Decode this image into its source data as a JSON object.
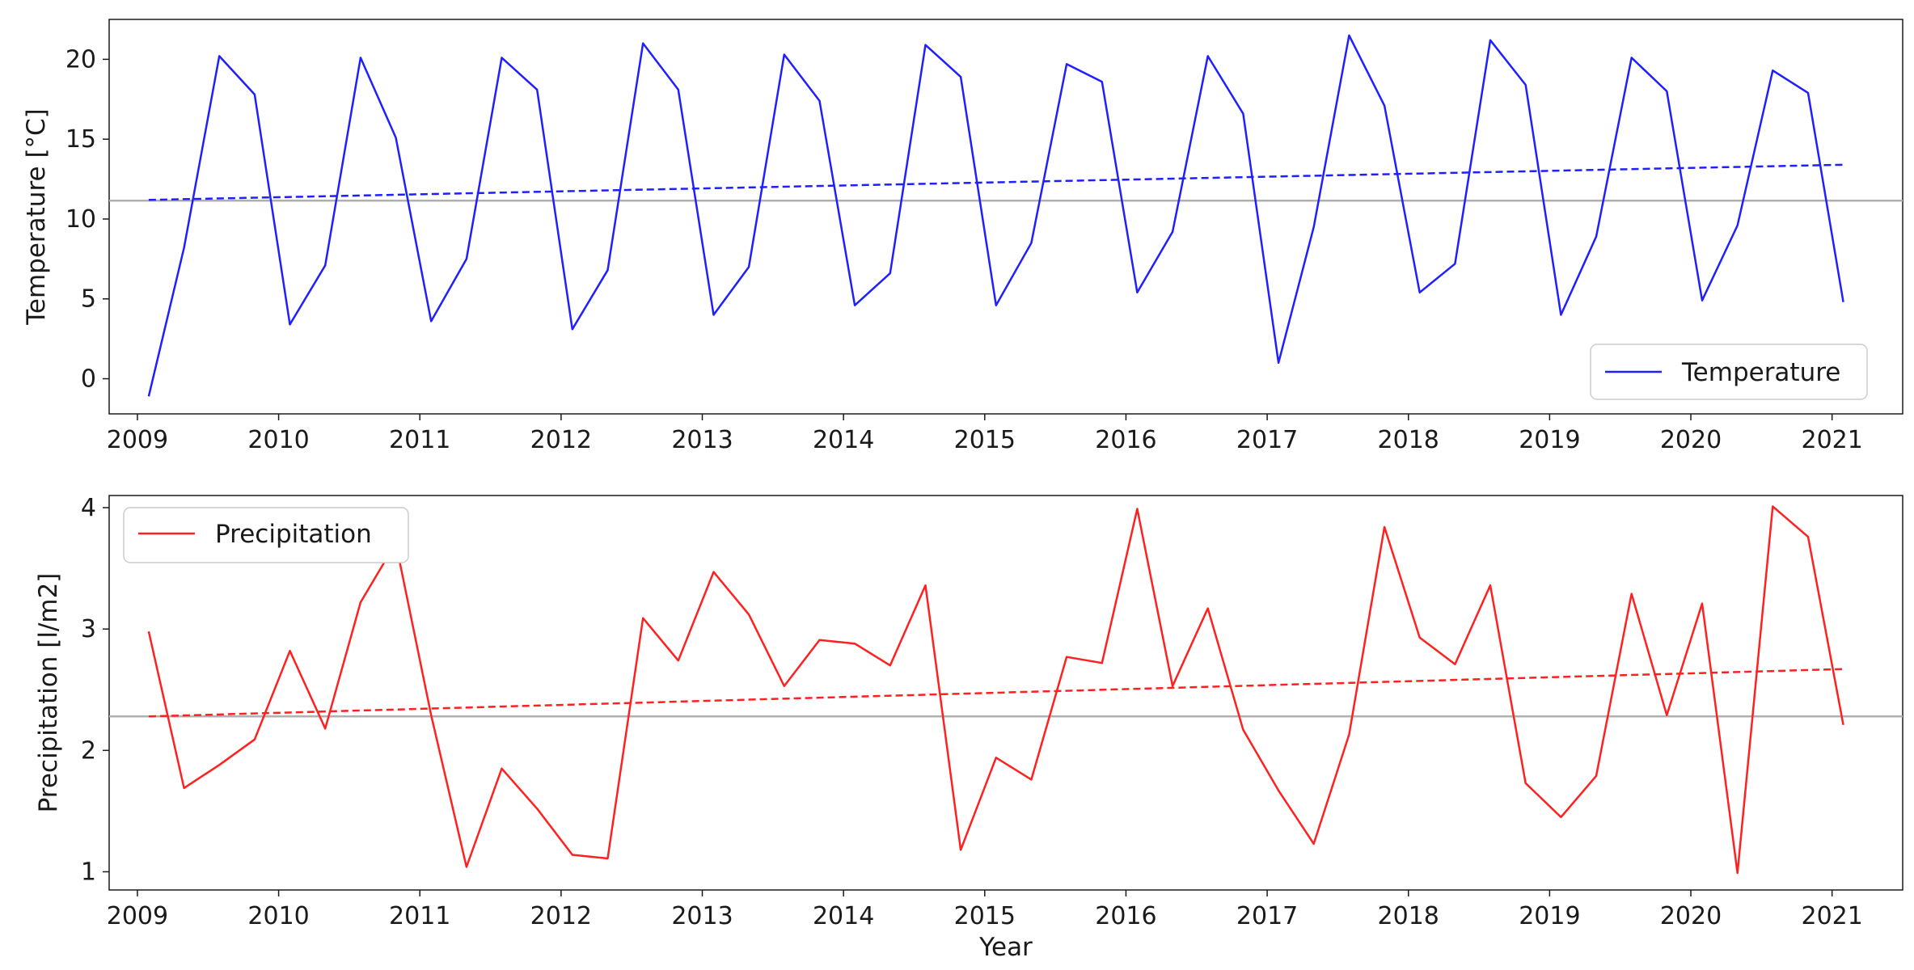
{
  "chart_data": [
    {
      "type": "line",
      "title": "",
      "xlabel": "",
      "ylabel": "Temperature [°C]",
      "xlim": [
        2008.8,
        2021.5
      ],
      "ylim": [
        -2.2,
        22.5
      ],
      "xticks": [
        2009,
        2010,
        2011,
        2012,
        2013,
        2014,
        2015,
        2016,
        2017,
        2018,
        2019,
        2020,
        2021
      ],
      "xtick_labels": [
        "2009",
        "2010",
        "2011",
        "2012",
        "2013",
        "2014",
        "2015",
        "2016",
        "2017",
        "2018",
        "2019",
        "2020",
        "2021"
      ],
      "yticks": [
        0,
        5,
        10,
        15,
        20
      ],
      "ytick_labels": [
        "0",
        "5",
        "10",
        "15",
        "20"
      ],
      "grid": false,
      "legend_position": "lower-right",
      "series": [
        {
          "name": "Temperature",
          "color": "#1f1fff",
          "x": [
            2009.08,
            2009.33,
            2009.58,
            2009.83,
            2010.08,
            2010.33,
            2010.58,
            2010.83,
            2011.08,
            2011.33,
            2011.58,
            2011.83,
            2012.08,
            2012.33,
            2012.58,
            2012.83,
            2013.08,
            2013.33,
            2013.58,
            2013.83,
            2014.08,
            2014.33,
            2014.58,
            2014.83,
            2015.08,
            2015.33,
            2015.58,
            2015.83,
            2016.08,
            2016.33,
            2016.58,
            2016.83,
            2017.08,
            2017.33,
            2017.58,
            2017.83,
            2018.08,
            2018.33,
            2018.58,
            2018.83,
            2019.08,
            2019.33,
            2019.58,
            2019.83,
            2020.08,
            2020.33,
            2020.58,
            2020.83,
            2021.08
          ],
          "y": [
            -1.1,
            8.2,
            20.2,
            17.8,
            3.4,
            7.1,
            20.1,
            15.1,
            3.6,
            7.5,
            20.1,
            18.1,
            3.1,
            6.8,
            21.0,
            18.1,
            4.0,
            7.0,
            20.3,
            17.4,
            4.6,
            6.6,
            20.9,
            18.9,
            4.6,
            8.5,
            19.7,
            18.6,
            5.4,
            9.2,
            20.2,
            16.6,
            1.0,
            9.5,
            21.5,
            17.1,
            5.4,
            7.2,
            21.2,
            18.4,
            4.0,
            8.9,
            20.1,
            18.0,
            4.9,
            9.6,
            19.3,
            17.9,
            4.8
          ]
        },
        {
          "name": "",
          "color": "#1f1fff",
          "style": "dashed",
          "x": [
            2009.08,
            2021.08
          ],
          "y": [
            11.2,
            13.4
          ]
        },
        {
          "name": "",
          "color": "#b0b0b0",
          "style": "horizontal-mean-line",
          "x": [
            2008.8,
            2021.5
          ],
          "y": [
            11.15,
            11.15
          ]
        }
      ]
    },
    {
      "type": "line",
      "title": "",
      "xlabel": "Year",
      "ylabel": "Precipitation [l/m2]",
      "xlim": [
        2008.8,
        2021.5
      ],
      "ylim": [
        0.85,
        4.1
      ],
      "xticks": [
        2009,
        2010,
        2011,
        2012,
        2013,
        2014,
        2015,
        2016,
        2017,
        2018,
        2019,
        2020,
        2021
      ],
      "xtick_labels": [
        "2009",
        "2010",
        "2011",
        "2012",
        "2013",
        "2014",
        "2015",
        "2016",
        "2017",
        "2018",
        "2019",
        "2020",
        "2021"
      ],
      "yticks": [
        1,
        2,
        3,
        4
      ],
      "ytick_labels": [
        "1",
        "2",
        "3",
        "4"
      ],
      "grid": false,
      "legend_position": "upper-left",
      "series": [
        {
          "name": "Precipitation",
          "color": "#ff2020",
          "x": [
            2009.08,
            2009.33,
            2009.58,
            2009.83,
            2010.08,
            2010.33,
            2010.58,
            2010.83,
            2011.08,
            2011.33,
            2011.58,
            2011.83,
            2012.08,
            2012.33,
            2012.58,
            2012.83,
            2013.08,
            2013.33,
            2013.58,
            2013.83,
            2014.08,
            2014.33,
            2014.58,
            2014.83,
            2015.08,
            2015.33,
            2015.58,
            2015.83,
            2016.08,
            2016.33,
            2016.58,
            2016.83,
            2017.08,
            2017.33,
            2017.58,
            2017.83,
            2018.08,
            2018.33,
            2018.58,
            2018.83,
            2019.08,
            2019.33,
            2019.58,
            2019.83,
            2020.08,
            2020.33,
            2020.58,
            2020.83,
            2021.08
          ],
          "y": [
            2.98,
            1.69,
            1.88,
            2.09,
            2.82,
            2.18,
            3.22,
            3.71,
            2.29,
            1.04,
            1.85,
            1.52,
            1.14,
            1.11,
            3.09,
            2.74,
            3.47,
            3.12,
            2.53,
            2.91,
            2.88,
            2.7,
            3.36,
            1.18,
            1.94,
            1.76,
            2.77,
            2.72,
            3.99,
            2.53,
            3.17,
            2.17,
            1.67,
            1.23,
            2.13,
            3.84,
            2.93,
            2.71,
            3.36,
            1.73,
            1.45,
            1.79,
            3.29,
            2.29,
            3.21,
            0.99,
            4.01,
            3.76,
            2.21
          ]
        },
        {
          "name": "",
          "color": "#ff2020",
          "style": "dashed",
          "x": [
            2009.08,
            2021.08
          ],
          "y": [
            2.28,
            2.67
          ]
        },
        {
          "name": "",
          "color": "#b0b0b0",
          "style": "horizontal-mean-line",
          "x": [
            2008.8,
            2021.5
          ],
          "y": [
            2.28,
            2.28
          ]
        }
      ]
    }
  ]
}
